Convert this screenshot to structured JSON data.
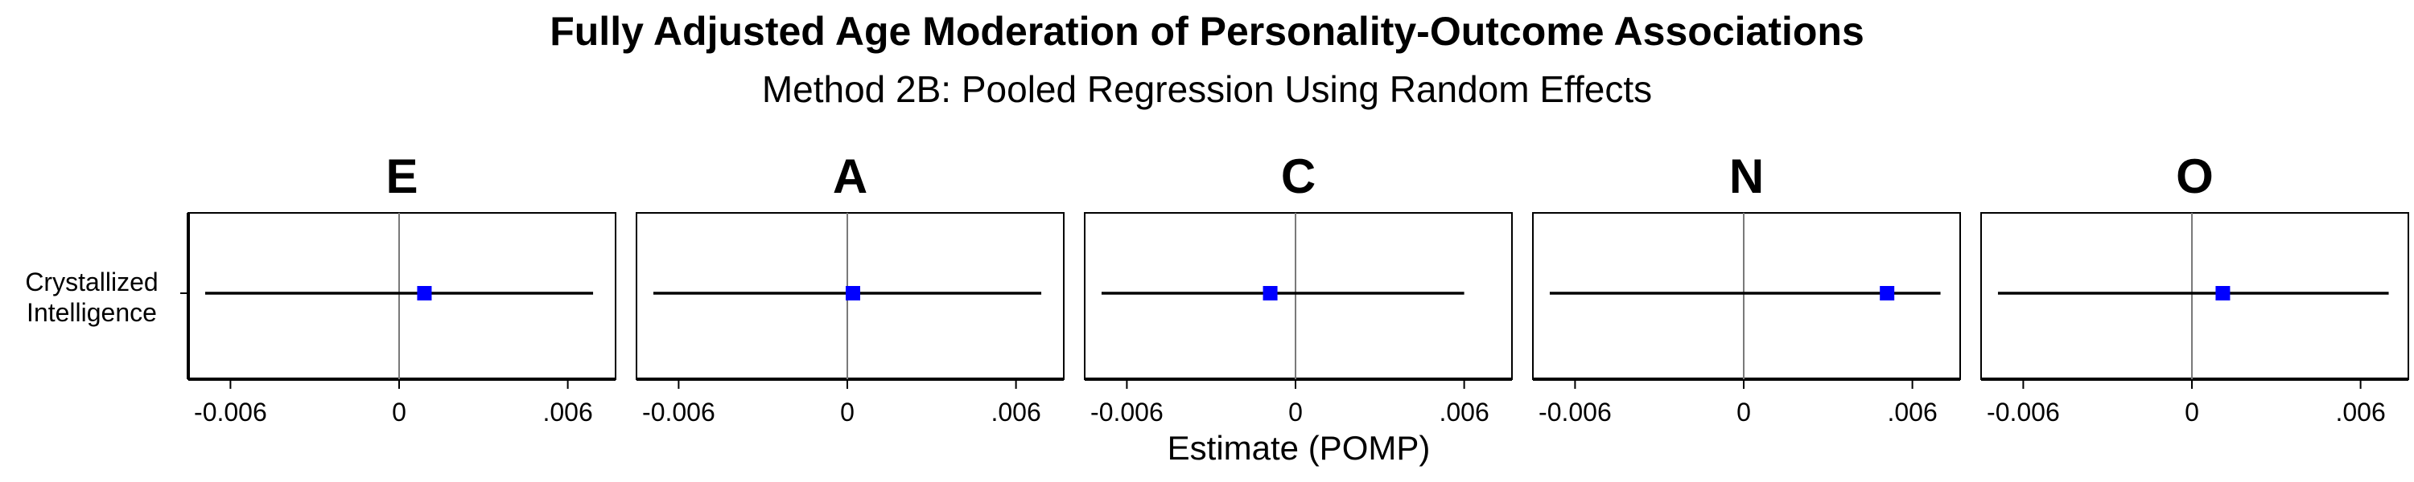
{
  "chart_data": {
    "type": "scatter",
    "title": "Fully Adjusted Age Moderation of Personality-Outcome Associations",
    "subtitle": "Method 2B: Pooled Regression Using Random Effects",
    "xlabel": "Estimate (POMP)",
    "xlim": [
      -0.0075,
      0.0077
    ],
    "x_ticks": [
      {
        "value": -0.006,
        "label": "-0.006"
      },
      {
        "value": 0,
        "label": "0"
      },
      {
        "value": 0.006,
        "label": ".006"
      }
    ],
    "y_category": [
      "Crystallized",
      "Intelligence"
    ],
    "reference_line_x": 0,
    "marker_color": "#0000ff",
    "panels": [
      {
        "facet": "E",
        "estimate": 0.0009,
        "ci_low": -0.0069,
        "ci_high": 0.0069
      },
      {
        "facet": "A",
        "estimate": 0.0002,
        "ci_low": -0.0069,
        "ci_high": 0.0069
      },
      {
        "facet": "C",
        "estimate": -0.0009,
        "ci_low": -0.0069,
        "ci_high": 0.006
      },
      {
        "facet": "N",
        "estimate": 0.0051,
        "ci_low": -0.0069,
        "ci_high": 0.007
      },
      {
        "facet": "O",
        "estimate": 0.0011,
        "ci_low": -0.0069,
        "ci_high": 0.007
      }
    ]
  }
}
